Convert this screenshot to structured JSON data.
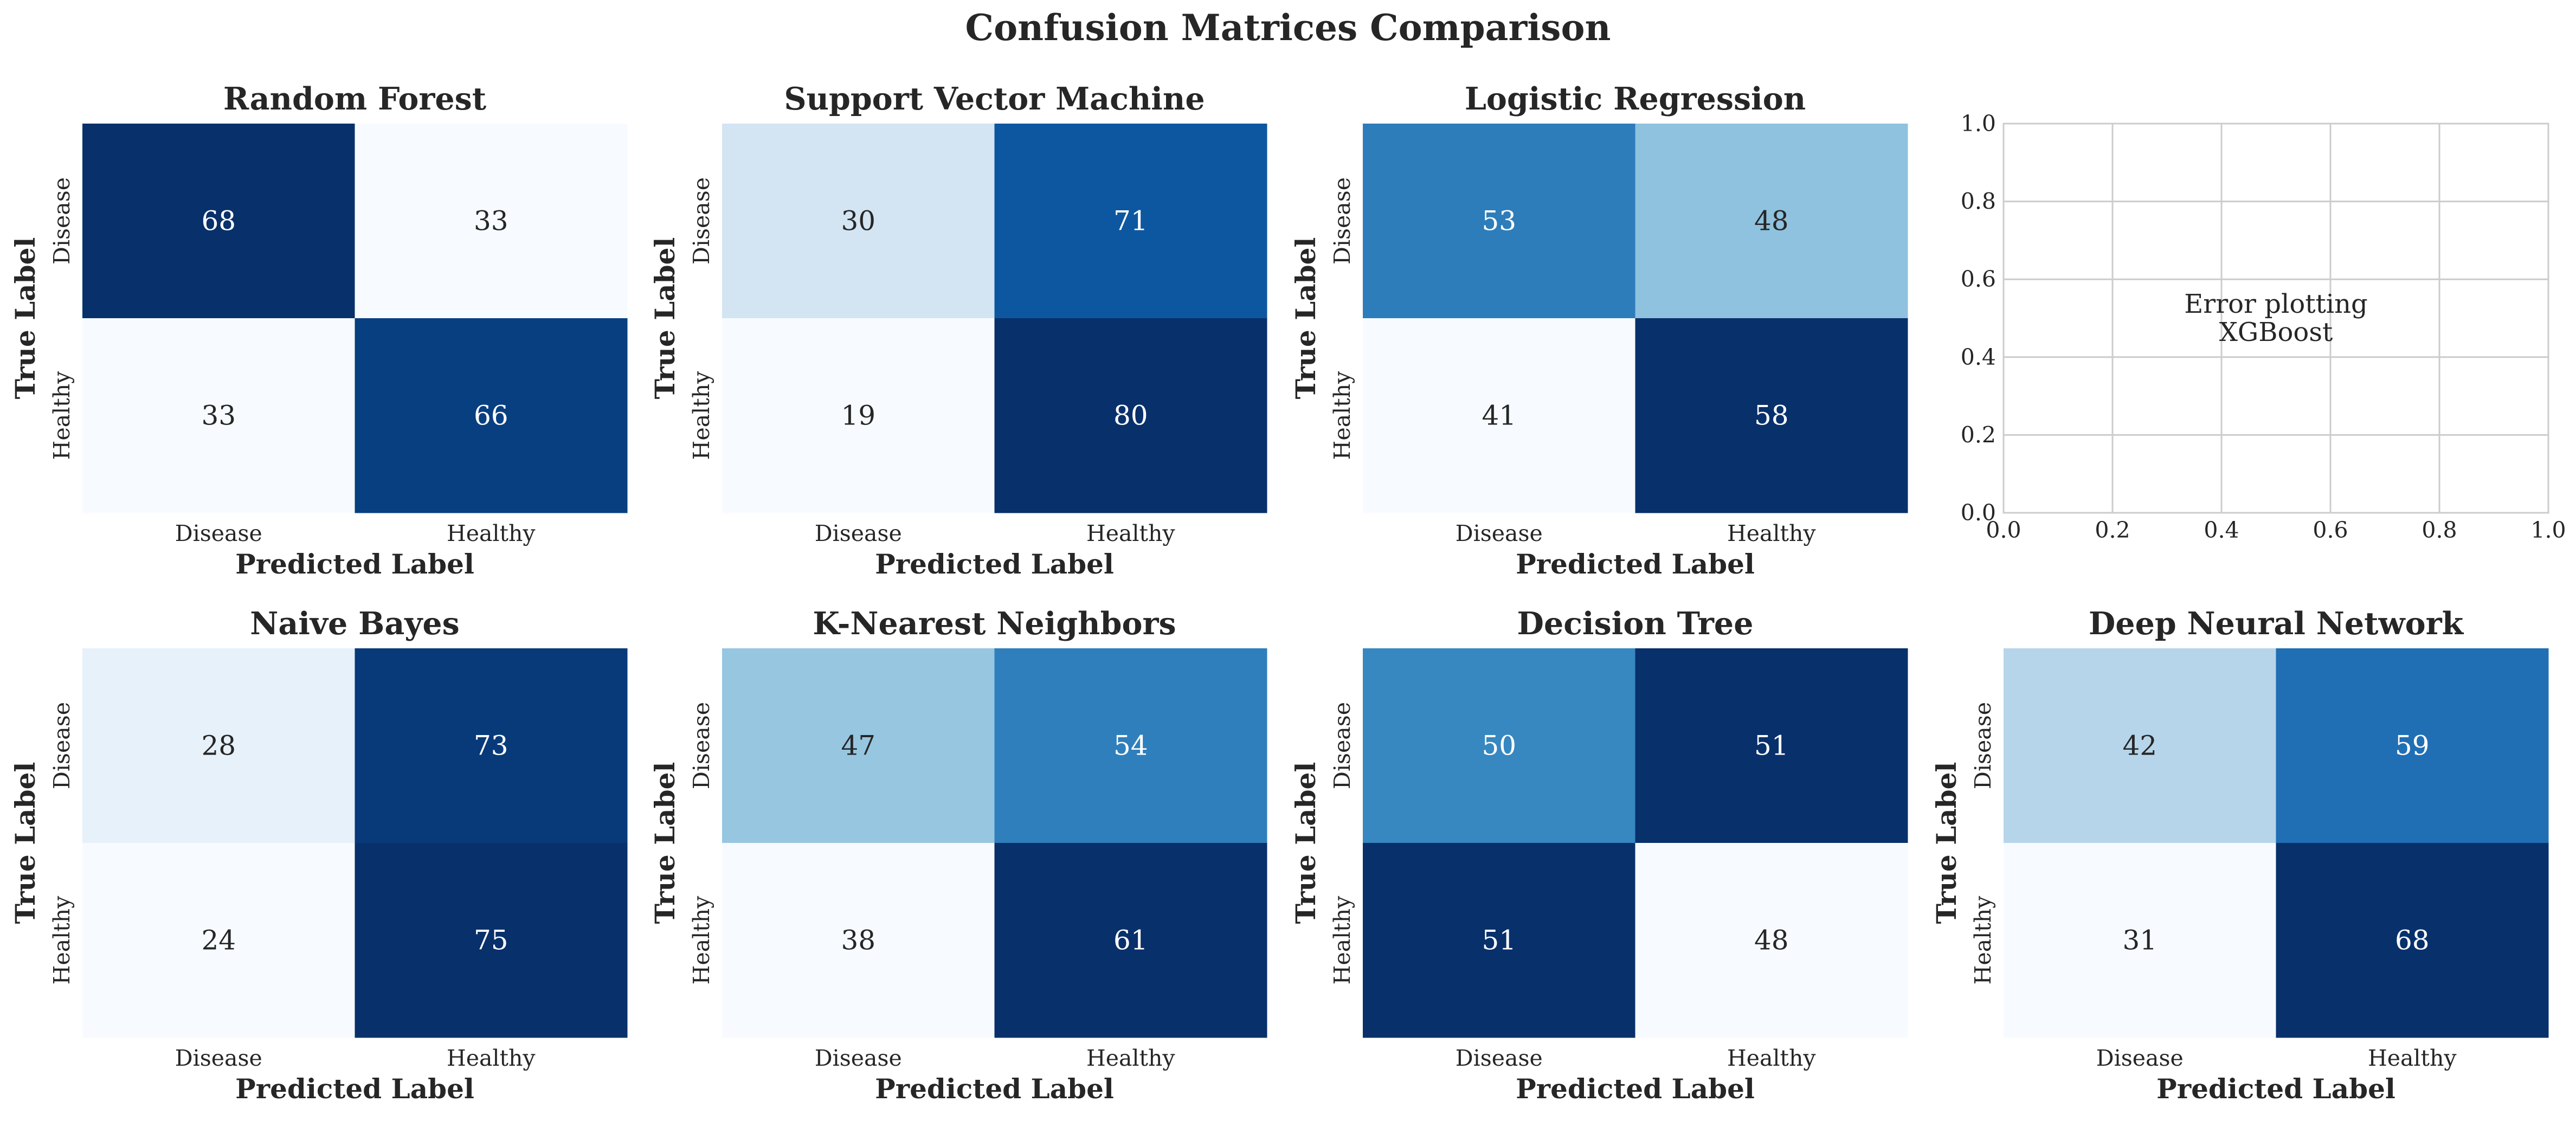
{
  "figure": {
    "title": "Confusion Matrices Comparison"
  },
  "colors": {
    "text": "#262626",
    "light_text": "#ffffff",
    "grid": "#cccccc",
    "cmap": "Blues"
  },
  "chart_data": [
    {
      "type": "heatmap",
      "title": "Random Forest",
      "rows": [
        "Disease",
        "Healthy"
      ],
      "cols": [
        "Disease",
        "Healthy"
      ],
      "values": [
        [
          68,
          33
        ],
        [
          33,
          66
        ]
      ],
      "xlabel": "Predicted Label",
      "ylabel": "True Label"
    },
    {
      "type": "heatmap",
      "title": "Support Vector Machine",
      "rows": [
        "Disease",
        "Healthy"
      ],
      "cols": [
        "Disease",
        "Healthy"
      ],
      "values": [
        [
          30,
          71
        ],
        [
          19,
          80
        ]
      ],
      "xlabel": "Predicted Label",
      "ylabel": "True Label"
    },
    {
      "type": "heatmap",
      "title": "Logistic Regression",
      "rows": [
        "Disease",
        "Healthy"
      ],
      "cols": [
        "Disease",
        "Healthy"
      ],
      "values": [
        [
          53,
          48
        ],
        [
          41,
          58
        ]
      ],
      "xlabel": "Predicted Label",
      "ylabel": "True Label"
    },
    {
      "type": "empty-axes",
      "annotation": "Error plotting\nXGBoost",
      "xlim": [
        0,
        1
      ],
      "ylim": [
        0,
        1
      ],
      "grid": true,
      "xticks": [
        "0.0",
        "0.2",
        "0.4",
        "0.6",
        "0.8",
        "1.0"
      ],
      "yticks": [
        "0.0",
        "0.2",
        "0.4",
        "0.6",
        "0.8",
        "1.0"
      ]
    },
    {
      "type": "heatmap",
      "title": "Naive Bayes",
      "rows": [
        "Disease",
        "Healthy"
      ],
      "cols": [
        "Disease",
        "Healthy"
      ],
      "values": [
        [
          28,
          73
        ],
        [
          24,
          75
        ]
      ],
      "xlabel": "Predicted Label",
      "ylabel": "True Label"
    },
    {
      "type": "heatmap",
      "title": "K-Nearest Neighbors",
      "rows": [
        "Disease",
        "Healthy"
      ],
      "cols": [
        "Disease",
        "Healthy"
      ],
      "values": [
        [
          47,
          54
        ],
        [
          38,
          61
        ]
      ],
      "xlabel": "Predicted Label",
      "ylabel": "True Label"
    },
    {
      "type": "heatmap",
      "title": "Decision Tree",
      "rows": [
        "Disease",
        "Healthy"
      ],
      "cols": [
        "Disease",
        "Healthy"
      ],
      "values": [
        [
          50,
          51
        ],
        [
          51,
          48
        ]
      ],
      "xlabel": "Predicted Label",
      "ylabel": "True Label"
    },
    {
      "type": "heatmap",
      "title": "Deep Neural Network",
      "rows": [
        "Disease",
        "Healthy"
      ],
      "cols": [
        "Disease",
        "Healthy"
      ],
      "values": [
        [
          42,
          59
        ],
        [
          31,
          68
        ]
      ],
      "xlabel": "Predicted Label",
      "ylabel": "True Label"
    }
  ]
}
